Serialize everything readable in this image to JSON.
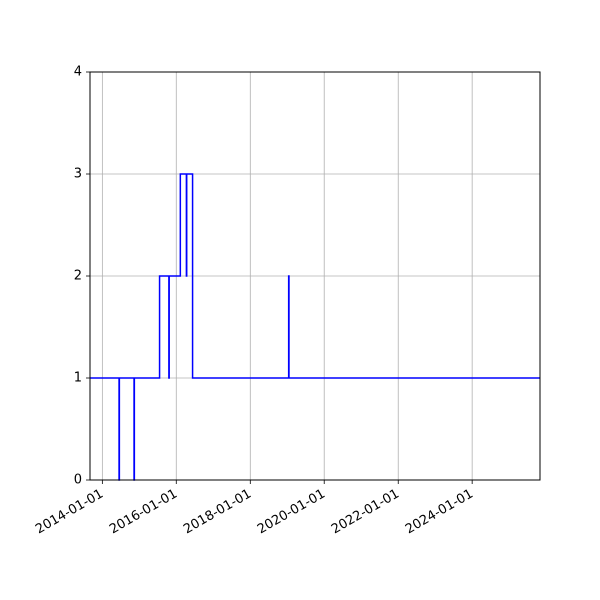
{
  "chart_data": {
    "type": "line",
    "drawstyle": "steps-post",
    "title": "",
    "xlabel": "",
    "ylabel": "",
    "xlim": [
      "2013-09-01",
      "2025-11-01"
    ],
    "ylim": [
      0,
      4
    ],
    "grid": true,
    "x_ticks": [
      "2014-01-01",
      "2016-01-01",
      "2018-01-01",
      "2020-01-01",
      "2022-01-01",
      "2024-01-01"
    ],
    "y_ticks": [
      0,
      1,
      2,
      3,
      4
    ],
    "series": [
      {
        "color": "#0000ff",
        "points": [
          {
            "x": "2013-09-01",
            "y": 1
          },
          {
            "x": "2014-06-15",
            "y": 0
          },
          {
            "x": "2014-06-18",
            "y": 1
          },
          {
            "x": "2014-11-10",
            "y": 0
          },
          {
            "x": "2014-11-13",
            "y": 1
          },
          {
            "x": "2015-07-20",
            "y": 2
          },
          {
            "x": "2015-10-20",
            "y": 1
          },
          {
            "x": "2015-10-23",
            "y": 2
          },
          {
            "x": "2016-02-10",
            "y": 3
          },
          {
            "x": "2016-04-10",
            "y": 2
          },
          {
            "x": "2016-04-13",
            "y": 3
          },
          {
            "x": "2016-06-10",
            "y": 1
          },
          {
            "x": "2019-01-15",
            "y": 2
          },
          {
            "x": "2019-01-18",
            "y": 1
          },
          {
            "x": "2025-11-01",
            "y": 1
          }
        ]
      }
    ]
  }
}
